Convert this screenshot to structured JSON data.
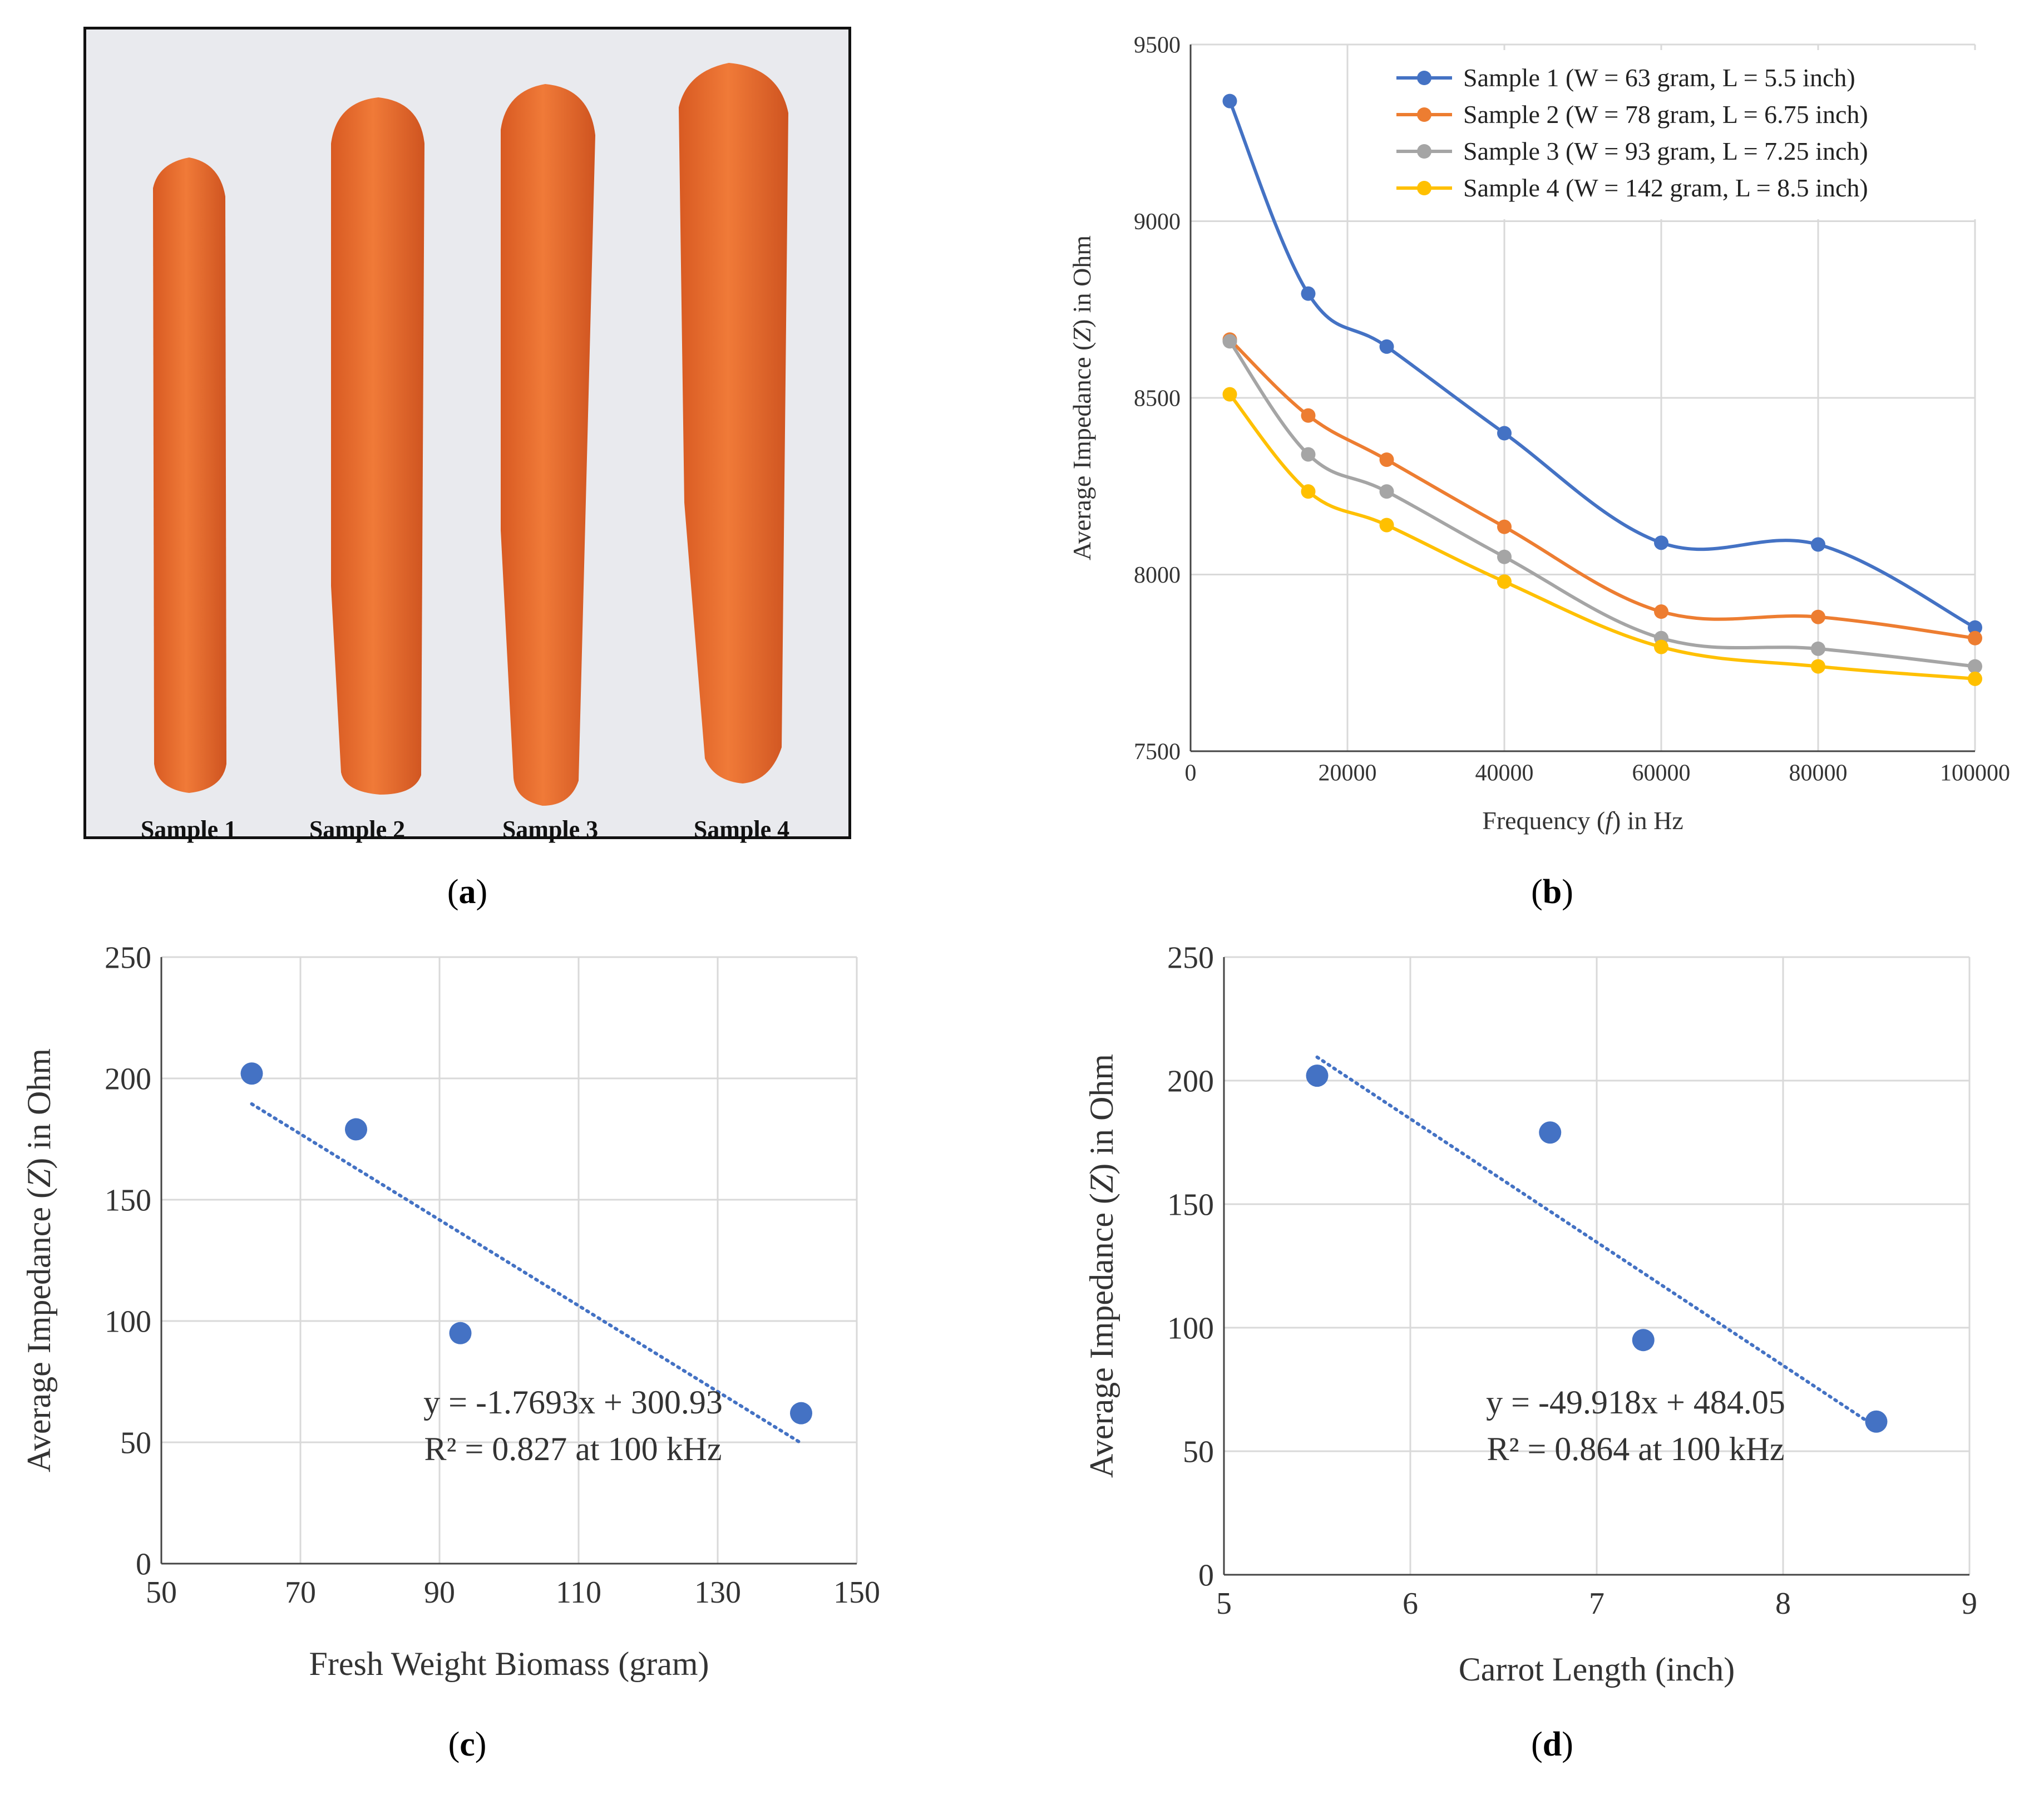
{
  "panel_a": {
    "caption": "a",
    "sample_labels": [
      "Sample 1",
      "Sample 2",
      "Sample 3",
      "Sample 4"
    ]
  },
  "captions": {
    "a": "a",
    "b": "b",
    "c": "c",
    "d": "d"
  },
  "colors": {
    "sample1": "#4472C4",
    "sample2": "#ED7D31",
    "sample3": "#A5A5A5",
    "sample4": "#FFC000",
    "scatter": "#4472C4",
    "grid": "#d9d9d9",
    "carrot": "#e8692c"
  },
  "chart_data": [
    {
      "id": "b",
      "type": "line",
      "xlabel": "Frequency (f) in Hz",
      "ylabel": "Average Impedance (Z) in Ohm",
      "xlim": [
        0,
        100000
      ],
      "ylim": [
        7500,
        9500
      ],
      "xticks": [
        0,
        20000,
        40000,
        60000,
        80000,
        100000
      ],
      "yticks": [
        7500,
        8000,
        8500,
        9000,
        9500
      ],
      "legend_position": "top-right",
      "x": [
        5000,
        15000,
        25000,
        40000,
        60000,
        80000,
        100000
      ],
      "series": [
        {
          "name": "Sample 1 (W = 63 gram, L = 5.5 inch)",
          "values": [
            9340,
            8795,
            8645,
            8400,
            8090,
            8085,
            7850
          ]
        },
        {
          "name": "Sample 2 (W = 78 gram, L = 6.75 inch)",
          "values": [
            8665,
            8450,
            8325,
            8135,
            7895,
            7880,
            7820
          ]
        },
        {
          "name": "Sample 3 (W = 93 gram, L = 7.25 inch)",
          "values": [
            8660,
            8340,
            8235,
            8050,
            7820,
            7790,
            7740
          ]
        },
        {
          "name": "Sample 4 (W = 142 gram, L = 8.5 inch)",
          "values": [
            8510,
            8235,
            8140,
            7980,
            7795,
            7740,
            7705
          ]
        }
      ]
    },
    {
      "id": "c",
      "type": "scatter",
      "xlabel": "Fresh Weight Biomass (gram)",
      "ylabel": "Average Impedance (Z) in Ohm",
      "xlim": [
        50,
        150
      ],
      "ylim": [
        0,
        250
      ],
      "xticks": [
        50,
        70,
        90,
        110,
        130,
        150
      ],
      "yticks": [
        0,
        50,
        100,
        150,
        200,
        250
      ],
      "x": [
        63,
        78,
        93,
        142
      ],
      "y": [
        202,
        179,
        95,
        62
      ],
      "trendline": {
        "slope": -1.7693,
        "intercept": 300.93,
        "x_range": [
          63,
          142
        ]
      },
      "annotation": [
        "y = -1.7693x + 300.93",
        "R² = 0.827 at 100 kHz"
      ]
    },
    {
      "id": "d",
      "type": "scatter",
      "xlabel": "Carrot Length (inch)",
      "ylabel": "Average Impedance (Z) in Ohm",
      "xlim": [
        5,
        9
      ],
      "ylim": [
        0,
        250
      ],
      "xticks": [
        5,
        6,
        7,
        8,
        9
      ],
      "yticks": [
        0,
        50,
        100,
        150,
        200,
        250
      ],
      "x": [
        5.5,
        6.75,
        7.25,
        8.5
      ],
      "y": [
        202,
        179,
        95,
        62
      ],
      "trendline": {
        "slope": -49.918,
        "intercept": 484.05,
        "x_range": [
          5.5,
          8.5
        ]
      },
      "annotation": [
        "y = -49.918x + 484.05",
        "R² = 0.864 at 100 kHz"
      ]
    }
  ]
}
